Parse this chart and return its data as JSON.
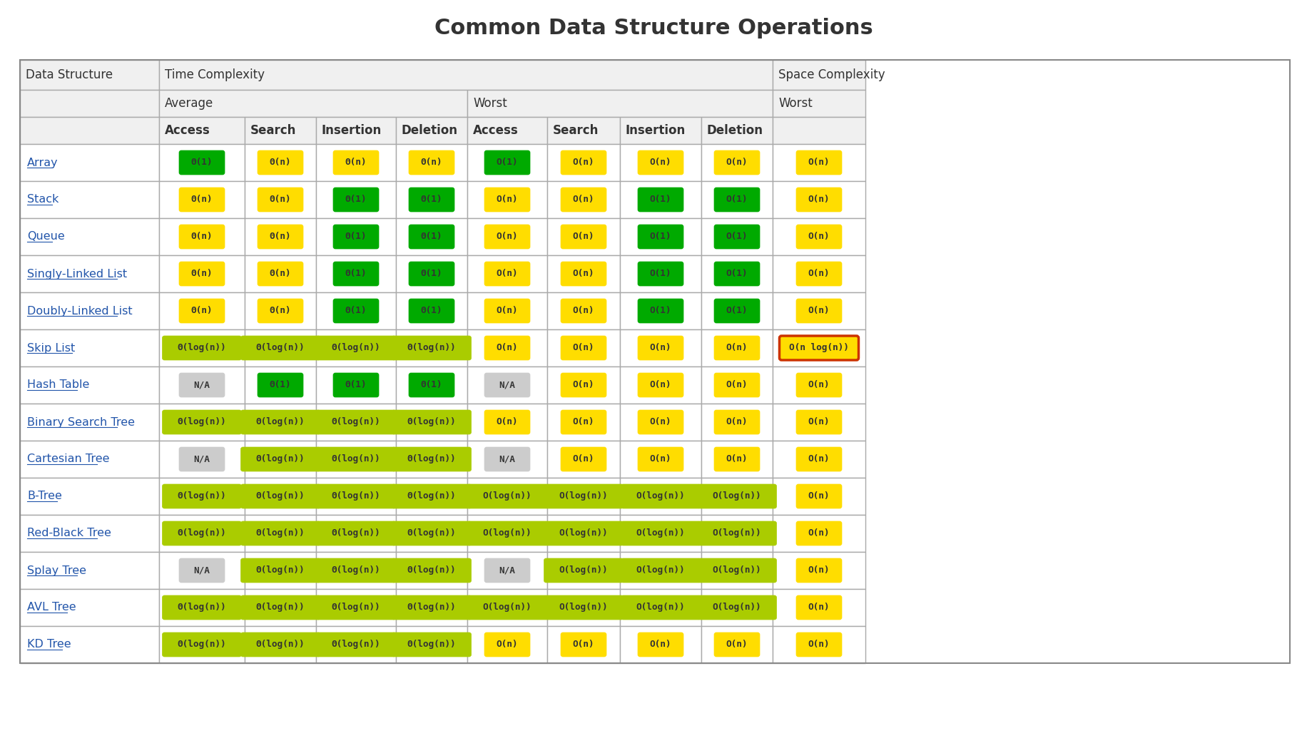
{
  "title": "Common Data Structure Operations",
  "title_fontsize": 22,
  "title_fontweight": "bold",
  "title_color": "#333333",
  "background_color": "#ffffff",
  "header_bg": "#f0f0f0",
  "table_border_color": "#aaaaaa",
  "colors": {
    "green": "#00aa00",
    "yellow_green": "#aacc00",
    "yellow": "#ffdd00",
    "orange": "#ff8800",
    "red": "#ff3300",
    "gray": "#cccccc",
    "red_border": "#cc3300"
  },
  "col_headers_top": [
    "Data Structure",
    "Time Complexity",
    "",
    "",
    "",
    "",
    "",
    "",
    "",
    "Space Complexity"
  ],
  "col_headers_mid": [
    "",
    "Average",
    "",
    "",
    "",
    "Worst",
    "",
    "",
    "",
    "Worst"
  ],
  "col_headers_bot": [
    "",
    "Access",
    "Search",
    "Insertion",
    "Deletion",
    "Access",
    "Search",
    "Insertion",
    "Deletion",
    ""
  ],
  "rows": [
    {
      "name": "Array",
      "avg_access": {
        "text": "Θ(1)",
        "color": "#00aa00"
      },
      "avg_search": {
        "text": "Θ(n)",
        "color": "#ffdd00"
      },
      "avg_insert": {
        "text": "Θ(n)",
        "color": "#ffdd00"
      },
      "avg_delete": {
        "text": "Θ(n)",
        "color": "#ffdd00"
      },
      "wst_access": {
        "text": "O(1)",
        "color": "#00aa00"
      },
      "wst_search": {
        "text": "O(n)",
        "color": "#ffdd00"
      },
      "wst_insert": {
        "text": "O(n)",
        "color": "#ffdd00"
      },
      "wst_delete": {
        "text": "O(n)",
        "color": "#ffdd00"
      },
      "space": {
        "text": "O(n)",
        "color": "#ffdd00"
      }
    },
    {
      "name": "Stack",
      "avg_access": {
        "text": "Θ(n)",
        "color": "#ffdd00"
      },
      "avg_search": {
        "text": "Θ(n)",
        "color": "#ffdd00"
      },
      "avg_insert": {
        "text": "Θ(1)",
        "color": "#00aa00"
      },
      "avg_delete": {
        "text": "Θ(1)",
        "color": "#00aa00"
      },
      "wst_access": {
        "text": "O(n)",
        "color": "#ffdd00"
      },
      "wst_search": {
        "text": "O(n)",
        "color": "#ffdd00"
      },
      "wst_insert": {
        "text": "O(1)",
        "color": "#00aa00"
      },
      "wst_delete": {
        "text": "O(1)",
        "color": "#00aa00"
      },
      "space": {
        "text": "O(n)",
        "color": "#ffdd00"
      }
    },
    {
      "name": "Queue",
      "avg_access": {
        "text": "Θ(n)",
        "color": "#ffdd00"
      },
      "avg_search": {
        "text": "Θ(n)",
        "color": "#ffdd00"
      },
      "avg_insert": {
        "text": "Θ(1)",
        "color": "#00aa00"
      },
      "avg_delete": {
        "text": "Θ(1)",
        "color": "#00aa00"
      },
      "wst_access": {
        "text": "O(n)",
        "color": "#ffdd00"
      },
      "wst_search": {
        "text": "O(n)",
        "color": "#ffdd00"
      },
      "wst_insert": {
        "text": "O(1)",
        "color": "#00aa00"
      },
      "wst_delete": {
        "text": "O(1)",
        "color": "#00aa00"
      },
      "space": {
        "text": "O(n)",
        "color": "#ffdd00"
      }
    },
    {
      "name": "Singly-Linked List",
      "avg_access": {
        "text": "Θ(n)",
        "color": "#ffdd00"
      },
      "avg_search": {
        "text": "Θ(n)",
        "color": "#ffdd00"
      },
      "avg_insert": {
        "text": "Θ(1)",
        "color": "#00aa00"
      },
      "avg_delete": {
        "text": "Θ(1)",
        "color": "#00aa00"
      },
      "wst_access": {
        "text": "O(n)",
        "color": "#ffdd00"
      },
      "wst_search": {
        "text": "O(n)",
        "color": "#ffdd00"
      },
      "wst_insert": {
        "text": "O(1)",
        "color": "#00aa00"
      },
      "wst_delete": {
        "text": "O(1)",
        "color": "#00aa00"
      },
      "space": {
        "text": "O(n)",
        "color": "#ffdd00"
      }
    },
    {
      "name": "Doubly-Linked List",
      "avg_access": {
        "text": "Θ(n)",
        "color": "#ffdd00"
      },
      "avg_search": {
        "text": "Θ(n)",
        "color": "#ffdd00"
      },
      "avg_insert": {
        "text": "Θ(1)",
        "color": "#00aa00"
      },
      "avg_delete": {
        "text": "Θ(1)",
        "color": "#00aa00"
      },
      "wst_access": {
        "text": "O(n)",
        "color": "#ffdd00"
      },
      "wst_search": {
        "text": "O(n)",
        "color": "#ffdd00"
      },
      "wst_insert": {
        "text": "O(1)",
        "color": "#00aa00"
      },
      "wst_delete": {
        "text": "O(1)",
        "color": "#00aa00"
      },
      "space": {
        "text": "O(n)",
        "color": "#ffdd00"
      }
    },
    {
      "name": "Skip List",
      "avg_access": {
        "text": "Θ(log(n))",
        "color": "#aacc00"
      },
      "avg_search": {
        "text": "Θ(log(n))",
        "color": "#aacc00"
      },
      "avg_insert": {
        "text": "Θ(log(n))",
        "color": "#aacc00"
      },
      "avg_delete": {
        "text": "Θ(log(n))",
        "color": "#aacc00"
      },
      "wst_access": {
        "text": "O(n)",
        "color": "#ffdd00"
      },
      "wst_search": {
        "text": "O(n)",
        "color": "#ffdd00"
      },
      "wst_insert": {
        "text": "O(n)",
        "color": "#ffdd00"
      },
      "wst_delete": {
        "text": "O(n)",
        "color": "#ffdd00"
      },
      "space": {
        "text": "O(n log(n))",
        "color": "#ffdd00",
        "border_color": "#cc3300"
      }
    },
    {
      "name": "Hash Table",
      "avg_access": {
        "text": "N/A",
        "color": "#cccccc"
      },
      "avg_search": {
        "text": "Θ(1)",
        "color": "#00aa00"
      },
      "avg_insert": {
        "text": "Θ(1)",
        "color": "#00aa00"
      },
      "avg_delete": {
        "text": "Θ(1)",
        "color": "#00aa00"
      },
      "wst_access": {
        "text": "N/A",
        "color": "#cccccc"
      },
      "wst_search": {
        "text": "O(n)",
        "color": "#ffdd00"
      },
      "wst_insert": {
        "text": "O(n)",
        "color": "#ffdd00"
      },
      "wst_delete": {
        "text": "O(n)",
        "color": "#ffdd00"
      },
      "space": {
        "text": "O(n)",
        "color": "#ffdd00"
      }
    },
    {
      "name": "Binary Search Tree",
      "avg_access": {
        "text": "Θ(log(n))",
        "color": "#aacc00"
      },
      "avg_search": {
        "text": "Θ(log(n))",
        "color": "#aacc00"
      },
      "avg_insert": {
        "text": "Θ(log(n))",
        "color": "#aacc00"
      },
      "avg_delete": {
        "text": "Θ(log(n))",
        "color": "#aacc00"
      },
      "wst_access": {
        "text": "O(n)",
        "color": "#ffdd00"
      },
      "wst_search": {
        "text": "O(n)",
        "color": "#ffdd00"
      },
      "wst_insert": {
        "text": "O(n)",
        "color": "#ffdd00"
      },
      "wst_delete": {
        "text": "O(n)",
        "color": "#ffdd00"
      },
      "space": {
        "text": "O(n)",
        "color": "#ffdd00"
      }
    },
    {
      "name": "Cartesian Tree",
      "avg_access": {
        "text": "N/A",
        "color": "#cccccc"
      },
      "avg_search": {
        "text": "Θ(log(n))",
        "color": "#aacc00"
      },
      "avg_insert": {
        "text": "Θ(log(n))",
        "color": "#aacc00"
      },
      "avg_delete": {
        "text": "Θ(log(n))",
        "color": "#aacc00"
      },
      "wst_access": {
        "text": "N/A",
        "color": "#cccccc"
      },
      "wst_search": {
        "text": "O(n)",
        "color": "#ffdd00"
      },
      "wst_insert": {
        "text": "O(n)",
        "color": "#ffdd00"
      },
      "wst_delete": {
        "text": "O(n)",
        "color": "#ffdd00"
      },
      "space": {
        "text": "O(n)",
        "color": "#ffdd00"
      }
    },
    {
      "name": "B-Tree",
      "avg_access": {
        "text": "Θ(log(n))",
        "color": "#aacc00"
      },
      "avg_search": {
        "text": "Θ(log(n))",
        "color": "#aacc00"
      },
      "avg_insert": {
        "text": "Θ(log(n))",
        "color": "#aacc00"
      },
      "avg_delete": {
        "text": "Θ(log(n))",
        "color": "#aacc00"
      },
      "wst_access": {
        "text": "O(log(n))",
        "color": "#aacc00"
      },
      "wst_search": {
        "text": "O(log(n))",
        "color": "#aacc00"
      },
      "wst_insert": {
        "text": "O(log(n))",
        "color": "#aacc00"
      },
      "wst_delete": {
        "text": "O(log(n))",
        "color": "#aacc00"
      },
      "space": {
        "text": "O(n)",
        "color": "#ffdd00"
      }
    },
    {
      "name": "Red-Black Tree",
      "avg_access": {
        "text": "Θ(log(n))",
        "color": "#aacc00"
      },
      "avg_search": {
        "text": "Θ(log(n))",
        "color": "#aacc00"
      },
      "avg_insert": {
        "text": "Θ(log(n))",
        "color": "#aacc00"
      },
      "avg_delete": {
        "text": "Θ(log(n))",
        "color": "#aacc00"
      },
      "wst_access": {
        "text": "O(log(n))",
        "color": "#aacc00"
      },
      "wst_search": {
        "text": "O(log(n))",
        "color": "#aacc00"
      },
      "wst_insert": {
        "text": "O(log(n))",
        "color": "#aacc00"
      },
      "wst_delete": {
        "text": "O(log(n))",
        "color": "#aacc00"
      },
      "space": {
        "text": "O(n)",
        "color": "#ffdd00"
      }
    },
    {
      "name": "Splay Tree",
      "avg_access": {
        "text": "N/A",
        "color": "#cccccc"
      },
      "avg_search": {
        "text": "Θ(log(n))",
        "color": "#aacc00"
      },
      "avg_insert": {
        "text": "Θ(log(n))",
        "color": "#aacc00"
      },
      "avg_delete": {
        "text": "Θ(log(n))",
        "color": "#aacc00"
      },
      "wst_access": {
        "text": "N/A",
        "color": "#cccccc"
      },
      "wst_search": {
        "text": "O(log(n))",
        "color": "#aacc00"
      },
      "wst_insert": {
        "text": "O(log(n))",
        "color": "#aacc00"
      },
      "wst_delete": {
        "text": "O(log(n))",
        "color": "#aacc00"
      },
      "space": {
        "text": "O(n)",
        "color": "#ffdd00"
      }
    },
    {
      "name": "AVL Tree",
      "avg_access": {
        "text": "Θ(log(n))",
        "color": "#aacc00"
      },
      "avg_search": {
        "text": "Θ(log(n))",
        "color": "#aacc00"
      },
      "avg_insert": {
        "text": "Θ(log(n))",
        "color": "#aacc00"
      },
      "avg_delete": {
        "text": "Θ(log(n))",
        "color": "#aacc00"
      },
      "wst_access": {
        "text": "O(log(n))",
        "color": "#aacc00"
      },
      "wst_search": {
        "text": "O(log(n))",
        "color": "#aacc00"
      },
      "wst_insert": {
        "text": "O(log(n))",
        "color": "#aacc00"
      },
      "wst_delete": {
        "text": "O(log(n))",
        "color": "#aacc00"
      },
      "space": {
        "text": "O(n)",
        "color": "#ffdd00"
      }
    },
    {
      "name": "KD Tree",
      "avg_access": {
        "text": "Θ(log(n))",
        "color": "#aacc00"
      },
      "avg_search": {
        "text": "Θ(log(n))",
        "color": "#aacc00"
      },
      "avg_insert": {
        "text": "Θ(log(n))",
        "color": "#aacc00"
      },
      "avg_delete": {
        "text": "Θ(log(n))",
        "color": "#aacc00"
      },
      "wst_access": {
        "text": "O(n)",
        "color": "#ffdd00"
      },
      "wst_search": {
        "text": "O(n)",
        "color": "#ffdd00"
      },
      "wst_insert": {
        "text": "O(n)",
        "color": "#ffdd00"
      },
      "wst_delete": {
        "text": "O(n)",
        "color": "#ffdd00"
      },
      "space": {
        "text": "O(n)",
        "color": "#ffdd00"
      }
    }
  ]
}
